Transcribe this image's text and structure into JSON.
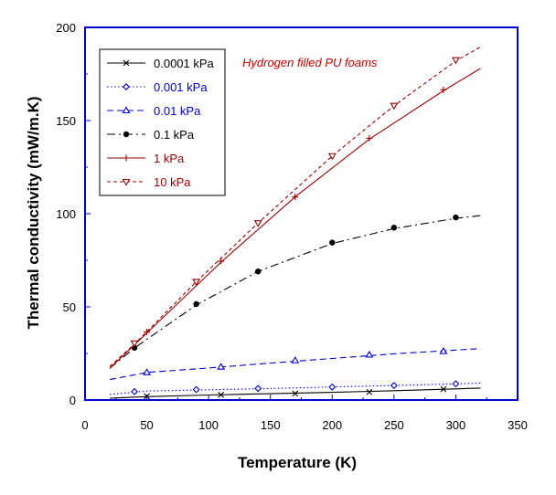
{
  "chart_data": {
    "type": "line",
    "xlabel": "Temperature (K)",
    "ylabel": "Thermal conductivity (mW/m.K)",
    "xlim": [
      0,
      350
    ],
    "ylim": [
      0,
      200
    ],
    "xticks": [
      "0",
      "50",
      "100",
      "150",
      "200",
      "250",
      "300",
      "350"
    ],
    "yticks": [
      "0",
      "50",
      "100",
      "150",
      "200"
    ],
    "grid": false,
    "legend_position": "top-left",
    "annotation": "Hydrogen filled PU foams",
    "annotation_color": "#cc0000",
    "plot_border_color": "#0000cc",
    "series": [
      {
        "name": "0.0001 kPa",
        "color": "#000000",
        "dash": "solid",
        "marker": "x",
        "curve": [
          [
            20,
            1
          ],
          [
            50,
            1.8
          ],
          [
            100,
            2.7
          ],
          [
            150,
            3.4
          ],
          [
            200,
            4.1
          ],
          [
            250,
            5
          ],
          [
            300,
            6
          ],
          [
            320,
            6.4
          ]
        ],
        "points": [
          [
            50,
            2
          ],
          [
            110,
            2.8
          ],
          [
            170,
            3.5
          ],
          [
            230,
            4.3
          ],
          [
            290,
            5.8
          ]
        ]
      },
      {
        "name": "0.001 kPa",
        "color": "#0000cc",
        "dash": "dotted",
        "marker": "diamond",
        "curve": [
          [
            20,
            3
          ],
          [
            50,
            4.8
          ],
          [
            100,
            5.5
          ],
          [
            150,
            6.2
          ],
          [
            200,
            7
          ],
          [
            250,
            7.8
          ],
          [
            300,
            8.7
          ],
          [
            320,
            9.1
          ]
        ],
        "points": [
          [
            40,
            4.5
          ],
          [
            90,
            5.6
          ],
          [
            140,
            6.2
          ],
          [
            200,
            7
          ],
          [
            250,
            7.8
          ],
          [
            300,
            8.7
          ]
        ]
      },
      {
        "name": "0.01 kPa",
        "color": "#0000cc",
        "dash": "dashed",
        "marker": "triangle",
        "curve": [
          [
            20,
            11
          ],
          [
            50,
            14.8
          ],
          [
            100,
            17.2
          ],
          [
            150,
            19.8
          ],
          [
            200,
            22.3
          ],
          [
            250,
            24.8
          ],
          [
            300,
            26.8
          ],
          [
            320,
            27.6
          ]
        ],
        "points": [
          [
            50,
            14.8
          ],
          [
            110,
            17.8
          ],
          [
            170,
            21.2
          ],
          [
            230,
            24.3
          ],
          [
            290,
            26.2
          ]
        ]
      },
      {
        "name": "0.1 kPa",
        "color": "#000000",
        "dash": "dashdot",
        "marker": "dot",
        "curve": [
          [
            20,
            17
          ],
          [
            40,
            28
          ],
          [
            90,
            51
          ],
          [
            140,
            69
          ],
          [
            200,
            84
          ],
          [
            250,
            92
          ],
          [
            300,
            97.5
          ],
          [
            320,
            99
          ]
        ],
        "points": [
          [
            40,
            28
          ],
          [
            90,
            51.5
          ],
          [
            140,
            69
          ],
          [
            200,
            84.5
          ],
          [
            250,
            92.5
          ],
          [
            300,
            98
          ]
        ]
      },
      {
        "name": "1 kPa",
        "color": "#990000",
        "dash": "solid",
        "marker": "plus",
        "curve": [
          [
            20,
            17
          ],
          [
            50,
            36
          ],
          [
            110,
            74
          ],
          [
            170,
            109
          ],
          [
            230,
            140
          ],
          [
            290,
            166
          ],
          [
            320,
            178
          ]
        ],
        "points": [
          [
            50,
            36.5
          ],
          [
            110,
            74.5
          ],
          [
            170,
            109
          ],
          [
            230,
            140.5
          ],
          [
            290,
            166.5
          ]
        ]
      },
      {
        "name": "10 kPa",
        "color": "#990000",
        "dash": "shortdash",
        "marker": "invtriangle",
        "curve": [
          [
            20,
            18
          ],
          [
            40,
            30
          ],
          [
            90,
            63.5
          ],
          [
            140,
            95
          ],
          [
            200,
            131
          ],
          [
            250,
            158
          ],
          [
            300,
            182
          ],
          [
            320,
            189.5
          ]
        ],
        "points": [
          [
            40,
            30.5
          ],
          [
            90,
            63.5
          ],
          [
            140,
            95
          ],
          [
            200,
            131
          ],
          [
            250,
            158
          ],
          [
            300,
            182.5
          ]
        ]
      }
    ]
  }
}
